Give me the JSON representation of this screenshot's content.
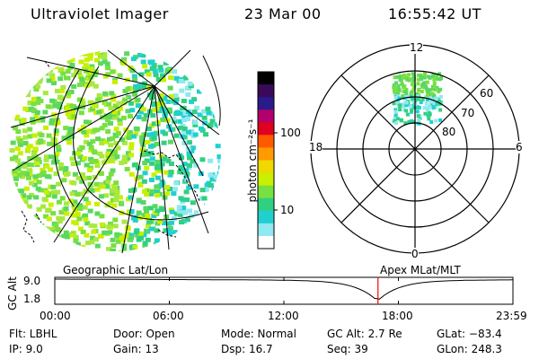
{
  "header": {
    "title": "Ultraviolet Imager",
    "date": "23 Mar 00",
    "time": "16:55:42 UT"
  },
  "colorbar": {
    "unit_label": "photon cm⁻²s⁻¹",
    "ticks": [
      "100",
      "10"
    ],
    "colors": [
      "#000000",
      "#3a0a5a",
      "#2b1a8a",
      "#b4006a",
      "#e00020",
      "#ff5a00",
      "#ff9a00",
      "#f0d800",
      "#c8f000",
      "#78e040",
      "#30d080",
      "#20d0d0",
      "#90e8f0",
      "#ffffff"
    ]
  },
  "polar_plot": {
    "mlt_labels": [
      "12",
      "18",
      "6",
      "0"
    ],
    "lat_labels": [
      "60",
      "70",
      "80"
    ]
  },
  "timeline": {
    "left_label": "Geographic Lat/Lon",
    "right_label": "Apex MLat/MLT",
    "y_axis_label": "GC Alt",
    "y_ticks": [
      "9.0",
      "1.8"
    ],
    "x_ticks": [
      "00:00",
      "06:00",
      "12:00",
      "18:00",
      "23:59"
    ],
    "marker_color": "#ff0000",
    "marker_time_hours": 16.93
  },
  "info": {
    "flt": "Flt: LBHL",
    "ip": "IP:  9.0",
    "door": "Door: Open",
    "gain": "Gain: 13",
    "mode": "Mode: Normal",
    "dsp": "Dsp:    16.7",
    "gc_alt": "GC Alt: 2.7 Re",
    "seq": "Seq: 39",
    "glat": "GLat: −83.4",
    "glon": "GLon: 248.3"
  }
}
